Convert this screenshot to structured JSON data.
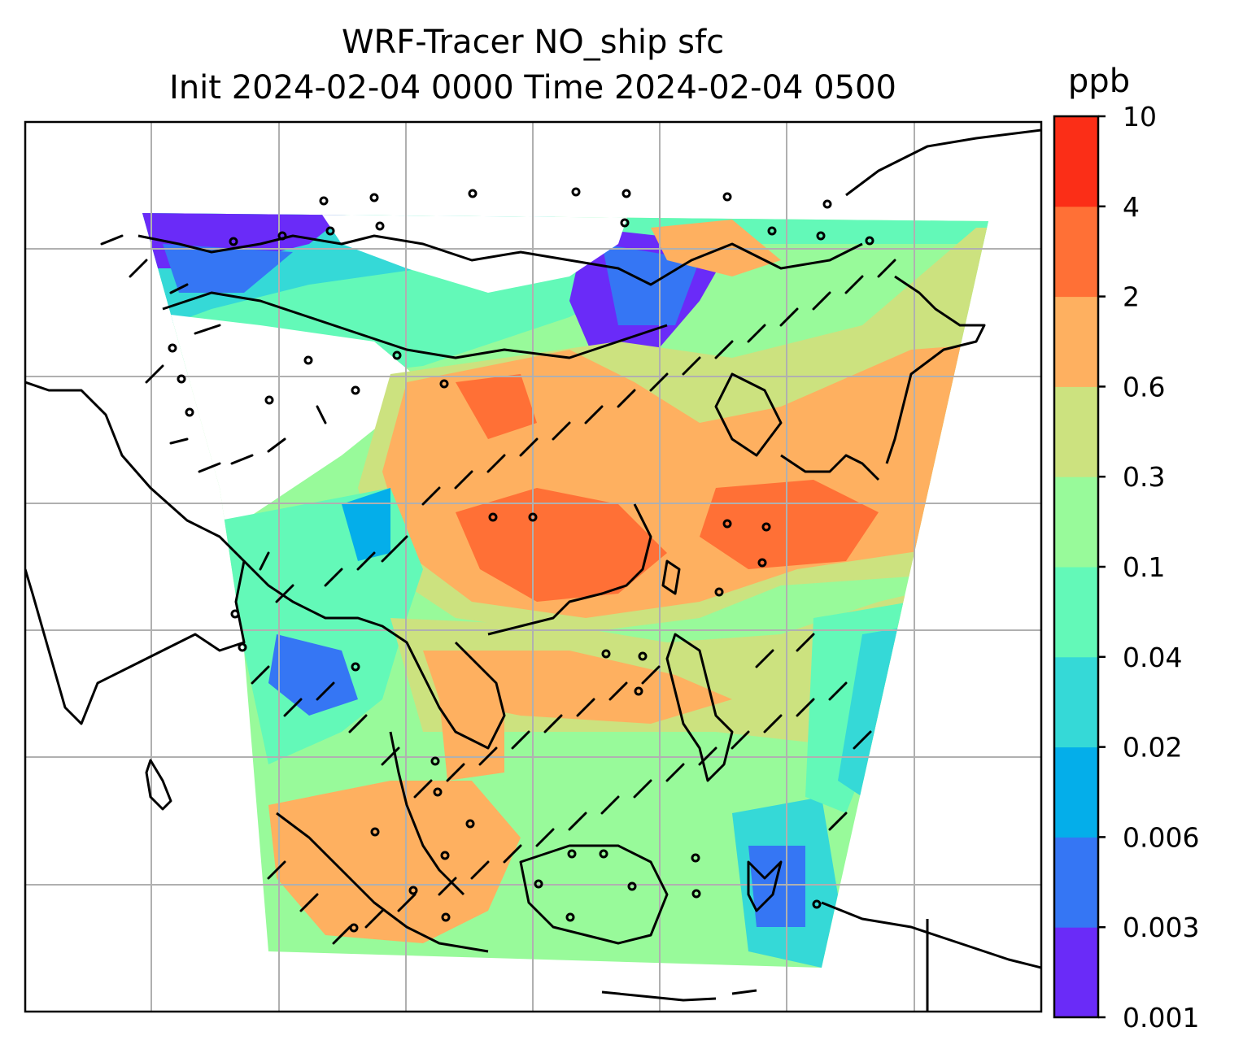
{
  "title_line1": "WRF-Tracer NO_ship sfc",
  "title_line2": "Init 2024-02-04 0000 Time 2024-02-04 0500",
  "colorbar": {
    "unit": "ppb",
    "levels": [
      "0.001",
      "0.003",
      "0.006",
      "0.02",
      "0.04",
      "0.1",
      "0.3",
      "0.6",
      "2",
      "4",
      "10"
    ],
    "colors": [
      "#6a2bf8",
      "#3576f4",
      "#04aeea",
      "#35d9d7",
      "#63f9b8",
      "#98fa9a",
      "#cce27f",
      "#feb060",
      "#ff7036",
      "#fb2e17"
    ]
  },
  "map": {
    "projection": "PlateCarree",
    "gridlines": true,
    "variable": "surface NO from ship emissions",
    "wind_barbs": true
  }
}
